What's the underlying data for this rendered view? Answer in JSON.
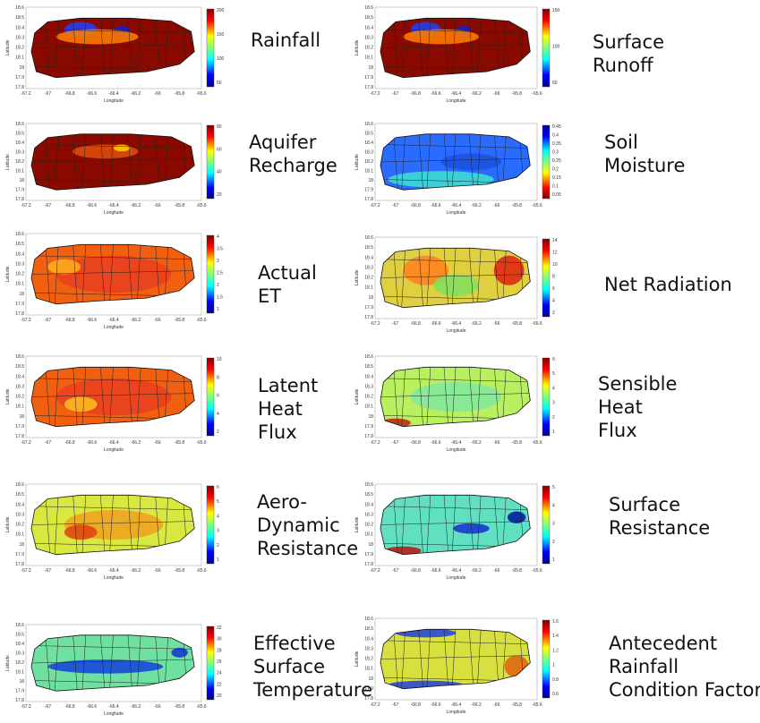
{
  "map_axes": {
    "x_label": "Longitude",
    "y_label": "Latitude",
    "xticks": [
      "-67.2",
      "-67",
      "-66.8",
      "-66.6",
      "-66.4",
      "-66.2",
      "-66",
      "-65.8",
      "-65.6"
    ],
    "yticks": [
      "18.6",
      "18.5",
      "18.4",
      "18.3",
      "18.2",
      "18.1",
      "18",
      "17.9",
      "17.8"
    ]
  },
  "panels": [
    {
      "label": [
        "Rainfall"
      ],
      "colorbar_ticks": [
        "200",
        "150",
        "100",
        "50"
      ]
    },
    {
      "label": [
        "Surface",
        "Runoff"
      ],
      "colorbar_ticks": [
        "150",
        "100",
        "50"
      ]
    },
    {
      "label": [
        "Aquifer",
        "Recharge"
      ],
      "colorbar_ticks": [
        "80",
        "60",
        "40",
        "20"
      ]
    },
    {
      "label": [
        "Soil",
        "Moisture"
      ],
      "colorbar_ticks": [
        "0.45",
        "0.4",
        "0.35",
        "0.3",
        "0.25",
        "0.2",
        "0.15",
        "0.1",
        "0.05"
      ]
    },
    {
      "label": [
        "Actual",
        "ET"
      ],
      "colorbar_ticks": [
        "4",
        "3.5",
        "3",
        "2.5",
        "2",
        "1.5",
        "1"
      ]
    },
    {
      "label": [
        "Net Radiation"
      ],
      "colorbar_ticks": [
        "14",
        "12",
        "10",
        "8",
        "6",
        "4",
        "2"
      ]
    },
    {
      "label": [
        "Latent",
        "Heat",
        "Flux"
      ],
      "colorbar_ticks": [
        "10",
        "8",
        "6",
        "4",
        "2"
      ]
    },
    {
      "label": [
        "Sensible",
        "Heat",
        "Flux"
      ],
      "colorbar_ticks": [
        "6",
        "5",
        "4",
        "3",
        "2",
        "1"
      ]
    },
    {
      "label": [
        "Aero-",
        "Dynamic",
        "Resistance"
      ],
      "colorbar_ticks": [
        "6",
        "5",
        "4",
        "3",
        "2",
        "1"
      ]
    },
    {
      "label": [
        "Surface",
        "Resistance"
      ],
      "colorbar_ticks": [
        "5",
        "4",
        "3",
        "2",
        "1"
      ]
    },
    {
      "label": [
        "Effective",
        "Surface",
        "Temperature"
      ],
      "colorbar_ticks": [
        "32",
        "30",
        "28",
        "26",
        "24",
        "22",
        "20"
      ]
    },
    {
      "label": [
        "Antecedent",
        "Rainfall",
        "Condition Factor"
      ],
      "colorbar_ticks": [
        "1.6",
        "1.4",
        "1.2",
        "1",
        "0.8",
        "0.6"
      ]
    }
  ]
}
